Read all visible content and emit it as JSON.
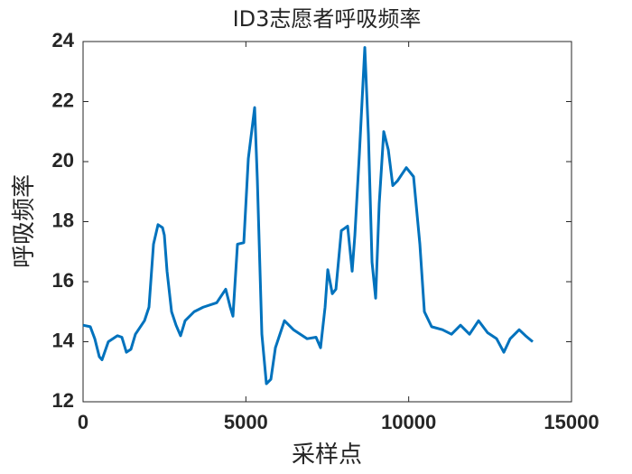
{
  "chart_data": {
    "type": "line",
    "title": "ID3志愿者呼吸频率",
    "x_label": "采样点",
    "y_label": "呼吸频率",
    "x": [
      0,
      222,
      360,
      499,
      582,
      776,
      1054,
      1192,
      1331,
      1470,
      1608,
      1886,
      2024,
      2163,
      2302,
      2440,
      2496,
      2579,
      2718,
      2856,
      2995,
      3134,
      3411,
      3688,
      4104,
      4381,
      4520,
      4603,
      4742,
      4936,
      5075,
      5269,
      5352,
      5491,
      5630,
      5768,
      5907,
      6184,
      6462,
      6878,
      7154,
      7293,
      7432,
      7515,
      7654,
      7765,
      7931,
      8125,
      8264,
      8347,
      8485,
      8652,
      8763,
      8874,
      8985,
      9095,
      9234,
      9373,
      9511,
      9650,
      9927,
      10149,
      10343,
      10482,
      10704,
      11037,
      11314,
      11591,
      11868,
      12146,
      12423,
      12700,
      12922,
      13116,
      13393,
      13587,
      13808
    ],
    "series": [
      {
        "name": "呼吸频率",
        "color": "#0072bd",
        "values": [
          14.55,
          14.5,
          14.1,
          13.5,
          13.4,
          14.0,
          14.2,
          14.15,
          13.65,
          13.75,
          14.25,
          14.7,
          15.15,
          17.25,
          17.9,
          17.8,
          17.55,
          16.35,
          15.0,
          14.55,
          14.2,
          14.7,
          15.0,
          15.15,
          15.3,
          15.75,
          15.15,
          14.85,
          17.25,
          17.3,
          20.1,
          21.8,
          19.4,
          14.25,
          12.6,
          12.75,
          13.8,
          14.7,
          14.4,
          14.1,
          14.15,
          13.8,
          15.15,
          16.4,
          15.6,
          15.75,
          17.7,
          17.85,
          16.35,
          17.55,
          20.25,
          23.8,
          20.9,
          16.65,
          15.45,
          18.6,
          21.0,
          20.4,
          19.2,
          19.35,
          19.8,
          19.5,
          17.25,
          15.0,
          14.5,
          14.4,
          14.25,
          14.55,
          14.25,
          14.7,
          14.3,
          14.1,
          13.65,
          14.1,
          14.4,
          14.2,
          14.0
        ]
      }
    ],
    "xlim": [
      0,
      15000
    ],
    "xticks": [
      0,
      5000,
      10000,
      15000
    ],
    "ylim": [
      12,
      24
    ],
    "yticks": [
      12,
      14,
      16,
      18,
      20,
      22,
      24
    ],
    "grid": false
  }
}
